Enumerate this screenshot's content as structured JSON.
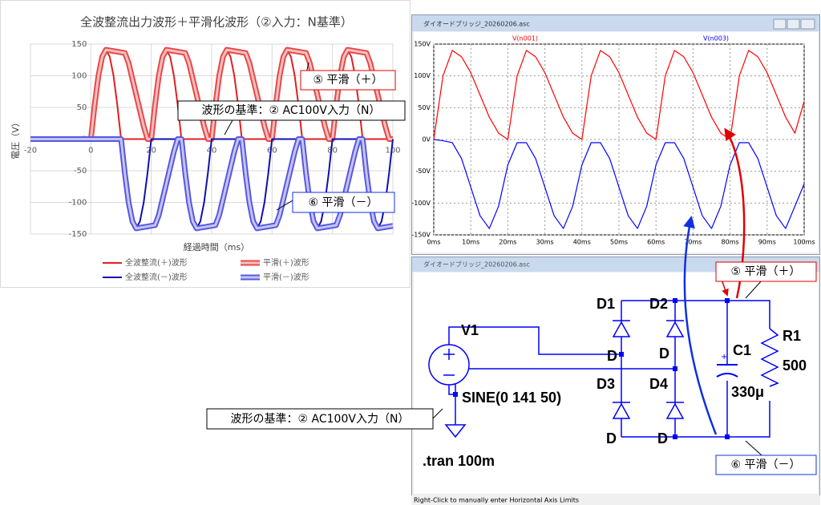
{
  "chart_data": [
    {
      "type": "line",
      "title": "全波整流出力波形＋平滑化波形（②入力：N基準）",
      "x_label": "経過時間（ms）",
      "y_label": "電圧（V）",
      "xlim": [
        -20,
        100
      ],
      "xticks": [
        -20,
        0,
        20,
        40,
        60,
        80,
        100
      ],
      "ylim": [
        -150,
        150
      ],
      "yticks": [
        -150,
        -100,
        -50,
        0,
        50,
        100,
        150
      ],
      "grid": true,
      "legend": "bottom",
      "x": [
        -20,
        -10,
        0,
        1.25,
        2.5,
        3.75,
        5,
        6.25,
        7.5,
        8.75,
        10,
        11.25,
        12.5,
        13.75,
        15,
        16.25,
        17.5,
        18.75,
        20,
        21.25,
        22.5,
        23.75,
        25,
        26.25,
        27.5,
        28.75,
        30,
        31.25,
        32.5,
        33.75,
        35,
        36.25,
        37.5,
        38.75,
        40,
        41.25,
        42.5,
        43.75,
        45,
        46.25,
        47.5,
        48.75,
        50,
        51.25,
        52.5,
        53.75,
        55,
        56.25,
        57.5,
        58.75,
        60,
        61.25,
        62.5,
        63.75,
        65,
        66.25,
        67.5,
        68.75,
        70,
        71.25,
        72.5,
        73.75,
        75,
        76.25,
        77.5,
        78.75,
        80,
        81.25,
        82.5,
        83.75,
        85,
        86.25,
        87.5,
        88.75,
        90,
        91.25,
        92.5,
        93.75,
        95,
        96.25,
        97.5,
        98.75,
        100
      ],
      "series": [
        {
          "name": "全波整流(＋)波形",
          "color": "#e02020",
          "line_style": "solid",
          "values": [
            0,
            0,
            0,
            54,
            100,
            130,
            141,
            130,
            100,
            54,
            0,
            0,
            0,
            0,
            0,
            0,
            0,
            0,
            0,
            54,
            100,
            130,
            141,
            130,
            100,
            54,
            0,
            0,
            0,
            0,
            0,
            0,
            0,
            0,
            0,
            54,
            100,
            130,
            141,
            130,
            100,
            54,
            0,
            0,
            0,
            0,
            0,
            0,
            0,
            0,
            0,
            54,
            100,
            130,
            141,
            130,
            100,
            54,
            0,
            0,
            0,
            0,
            0,
            0,
            0,
            0,
            0,
            54,
            100,
            130,
            141,
            130,
            100,
            54,
            0,
            0,
            0,
            0,
            0,
            0,
            0,
            0,
            0
          ]
        },
        {
          "name": "平滑(＋)波形",
          "color": "#e84848",
          "line_style": "double",
          "values": [
            0,
            0,
            0,
            54,
            100,
            130,
            141,
            140,
            139,
            138,
            137,
            136,
            120,
            95,
            70,
            45,
            20,
            0,
            0,
            54,
            100,
            130,
            141,
            140,
            139,
            138,
            137,
            136,
            120,
            95,
            70,
            45,
            20,
            0,
            0,
            54,
            100,
            130,
            141,
            140,
            139,
            138,
            137,
            136,
            120,
            95,
            70,
            45,
            20,
            0,
            0,
            54,
            100,
            130,
            141,
            140,
            139,
            138,
            137,
            136,
            120,
            95,
            70,
            45,
            20,
            0,
            0,
            54,
            100,
            130,
            141,
            140,
            139,
            138,
            137,
            136,
            120,
            95,
            70,
            45,
            20,
            0,
            0
          ]
        },
        {
          "name": "全波整流(－)波形",
          "color": "#1010b0",
          "line_style": "solid",
          "values": [
            0,
            0,
            0,
            0,
            0,
            0,
            0,
            0,
            0,
            0,
            0,
            -54,
            -100,
            -130,
            -141,
            -130,
            -100,
            -54,
            0,
            0,
            0,
            0,
            0,
            0,
            0,
            0,
            0,
            -54,
            -100,
            -130,
            -141,
            -130,
            -100,
            -54,
            0,
            0,
            0,
            0,
            0,
            0,
            0,
            0,
            0,
            -54,
            -100,
            -130,
            -141,
            -130,
            -100,
            -54,
            0,
            0,
            0,
            0,
            0,
            0,
            0,
            0,
            0,
            -54,
            -100,
            -130,
            -141,
            -130,
            -100,
            -54,
            0,
            0,
            0,
            0,
            0,
            0,
            0,
            0,
            0,
            -54,
            -100,
            -130,
            -141,
            -130,
            -100,
            -54,
            0
          ]
        },
        {
          "name": "平滑(－)波形",
          "color": "#5858e0",
          "line_style": "double",
          "values": [
            0,
            0,
            0,
            0,
            0,
            0,
            0,
            0,
            0,
            0,
            0,
            -54,
            -100,
            -130,
            -141,
            -140,
            -139,
            -138,
            -137,
            -136,
            -120,
            -95,
            -70,
            -45,
            -20,
            0,
            0,
            -54,
            -100,
            -130,
            -141,
            -140,
            -139,
            -138,
            -137,
            -136,
            -120,
            -95,
            -70,
            -45,
            -20,
            0,
            0,
            -54,
            -100,
            -130,
            -141,
            -140,
            -139,
            -138,
            -137,
            -136,
            -120,
            -95,
            -70,
            -45,
            -20,
            0,
            0,
            -54,
            -100,
            -130,
            -141,
            -140,
            -139,
            -138,
            -137,
            -136,
            -120,
            -95,
            -70,
            -45,
            -20,
            0,
            0,
            -54,
            -100,
            -130,
            -141,
            -140,
            -139,
            -138,
            -137
          ]
        }
      ]
    },
    {
      "type": "line",
      "window_title": "ダイオードブリッジ_20260206.asc",
      "xlim": [
        0,
        100
      ],
      "xticks": [
        {
          "value": 0,
          "label": "0ms"
        },
        {
          "value": 10,
          "label": "10ms"
        },
        {
          "value": 20,
          "label": "20ms"
        },
        {
          "value": 30,
          "label": "30ms"
        },
        {
          "value": 40,
          "label": "40ms"
        },
        {
          "value": 50,
          "label": "50ms"
        },
        {
          "value": 60,
          "label": "60ms"
        },
        {
          "value": 70,
          "label": "70ms"
        },
        {
          "value": 80,
          "label": "80ms"
        },
        {
          "value": 90,
          "label": "90ms"
        },
        {
          "value": 100,
          "label": "100ms"
        }
      ],
      "ylim": [
        -150,
        150
      ],
      "yticks": [
        {
          "value": -150,
          "label": "-150V"
        },
        {
          "value": -100,
          "label": "-100V"
        },
        {
          "value": -50,
          "label": "-50V"
        },
        {
          "value": 0,
          "label": "0V"
        },
        {
          "value": 50,
          "label": "50V"
        },
        {
          "value": 100,
          "label": "100V"
        },
        {
          "value": 150,
          "label": "150V"
        }
      ],
      "grid": true,
      "x": [
        0,
        2.5,
        5,
        7.5,
        10,
        12.5,
        15,
        17.5,
        20,
        22.5,
        25,
        27.5,
        30,
        32.5,
        35,
        37.5,
        40,
        42.5,
        45,
        47.5,
        50,
        52.5,
        55,
        57.5,
        60,
        62.5,
        65,
        67.5,
        70,
        72.5,
        75,
        77.5,
        80,
        82.5,
        85,
        87.5,
        90,
        92.5,
        95,
        97.5,
        100
      ],
      "series": [
        {
          "name": "V(n001)",
          "color": "#ff0000",
          "line_style": "solid",
          "values": [
            0,
            100,
            140,
            130,
            105,
            70,
            35,
            10,
            0,
            100,
            140,
            130,
            105,
            70,
            35,
            10,
            0,
            100,
            140,
            130,
            105,
            70,
            35,
            10,
            0,
            100,
            140,
            130,
            105,
            70,
            35,
            10,
            0,
            100,
            140,
            130,
            105,
            70,
            35,
            10,
            60
          ]
        },
        {
          "name": "V(n003)",
          "color": "#0000ff",
          "line_style": "solid",
          "values": [
            0,
            -2,
            -5,
            -30,
            -75,
            -120,
            -140,
            -105,
            -40,
            -5,
            -5,
            -30,
            -75,
            -120,
            -140,
            -105,
            -40,
            -5,
            -5,
            -30,
            -75,
            -120,
            -140,
            -105,
            -40,
            -5,
            -5,
            -30,
            -75,
            -120,
            -140,
            -105,
            -40,
            -5,
            -5,
            -30,
            -75,
            -120,
            -140,
            -105,
            -70
          ]
        }
      ]
    }
  ],
  "schematic": {
    "window_title": "ダイオードブリッジ_20260206.asc",
    "source": "V1",
    "source_value": "SINE(0 141 50)",
    "directive": ".tran 100m",
    "diodes": [
      {
        "name": "D1",
        "model": "D"
      },
      {
        "name": "D2",
        "model": "D"
      },
      {
        "name": "D3",
        "model": "D"
      },
      {
        "name": "D4",
        "model": "D"
      }
    ],
    "capacitor": {
      "name": "C1",
      "value": "330μ"
    },
    "resistor": {
      "name": "R1",
      "value": "500"
    }
  },
  "callouts": {
    "smooth_plus": "⑤ 平滑（＋）",
    "smooth_minus": "⑥ 平滑（－）",
    "reference": "波形の基準：② AC100V入力（N）"
  },
  "status_bar": "Right-Click to manually enter Horizontal Axis Limits"
}
